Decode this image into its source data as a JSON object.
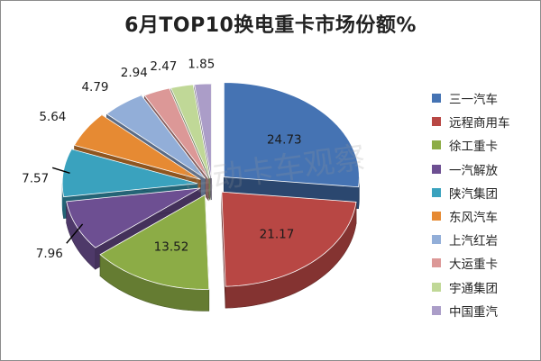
{
  "chart_data": {
    "type": "pie",
    "title": "6月TOP10换电重卡市场份额%",
    "watermark": "电动卡车观察",
    "categories": [
      "三一汽车",
      "远程商用车",
      "徐工重卡",
      "一汽解放",
      "陕汽集团",
      "东风汽车",
      "上汽红岩",
      "大运重卡",
      "宇通集团",
      "中国重汽"
    ],
    "values": [
      24.73,
      21.17,
      13.52,
      7.96,
      7.57,
      5.64,
      4.79,
      2.94,
      2.47,
      1.85
    ],
    "value_labels": [
      "24.73",
      "21.17",
      "13.52",
      "7.96",
      "7.57",
      "5.64",
      "4.79",
      "2.94",
      "2.47",
      "1.85"
    ],
    "colors": [
      "#4573b3",
      "#b84744",
      "#8cac46",
      "#6d4f92",
      "#3aa2be",
      "#e68a33",
      "#92aed8",
      "#dc9897",
      "#c0d897",
      "#ab9dc8"
    ],
    "style": "3d-exploded",
    "legend_position": "right"
  }
}
